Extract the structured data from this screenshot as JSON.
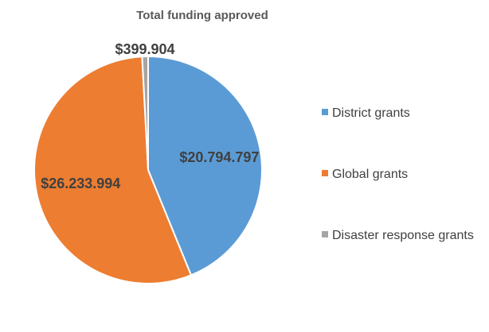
{
  "chart_data": {
    "type": "pie",
    "title": "Total funding approved",
    "categories": [
      "District grants",
      "Global grants",
      "Disaster response grants"
    ],
    "values": [
      20794797,
      26233994,
      399904
    ],
    "data_labels": [
      "$20.794.797",
      "$26.233.994",
      "$399.904"
    ],
    "colors": [
      "#5B9BD5",
      "#ED7D31",
      "#A5A5A5"
    ],
    "start_angle_deg": 0,
    "direction": "clockwise",
    "legend": {
      "position": "right",
      "entries": [
        "District grants",
        "Global grants",
        "Disaster response grants"
      ]
    }
  }
}
